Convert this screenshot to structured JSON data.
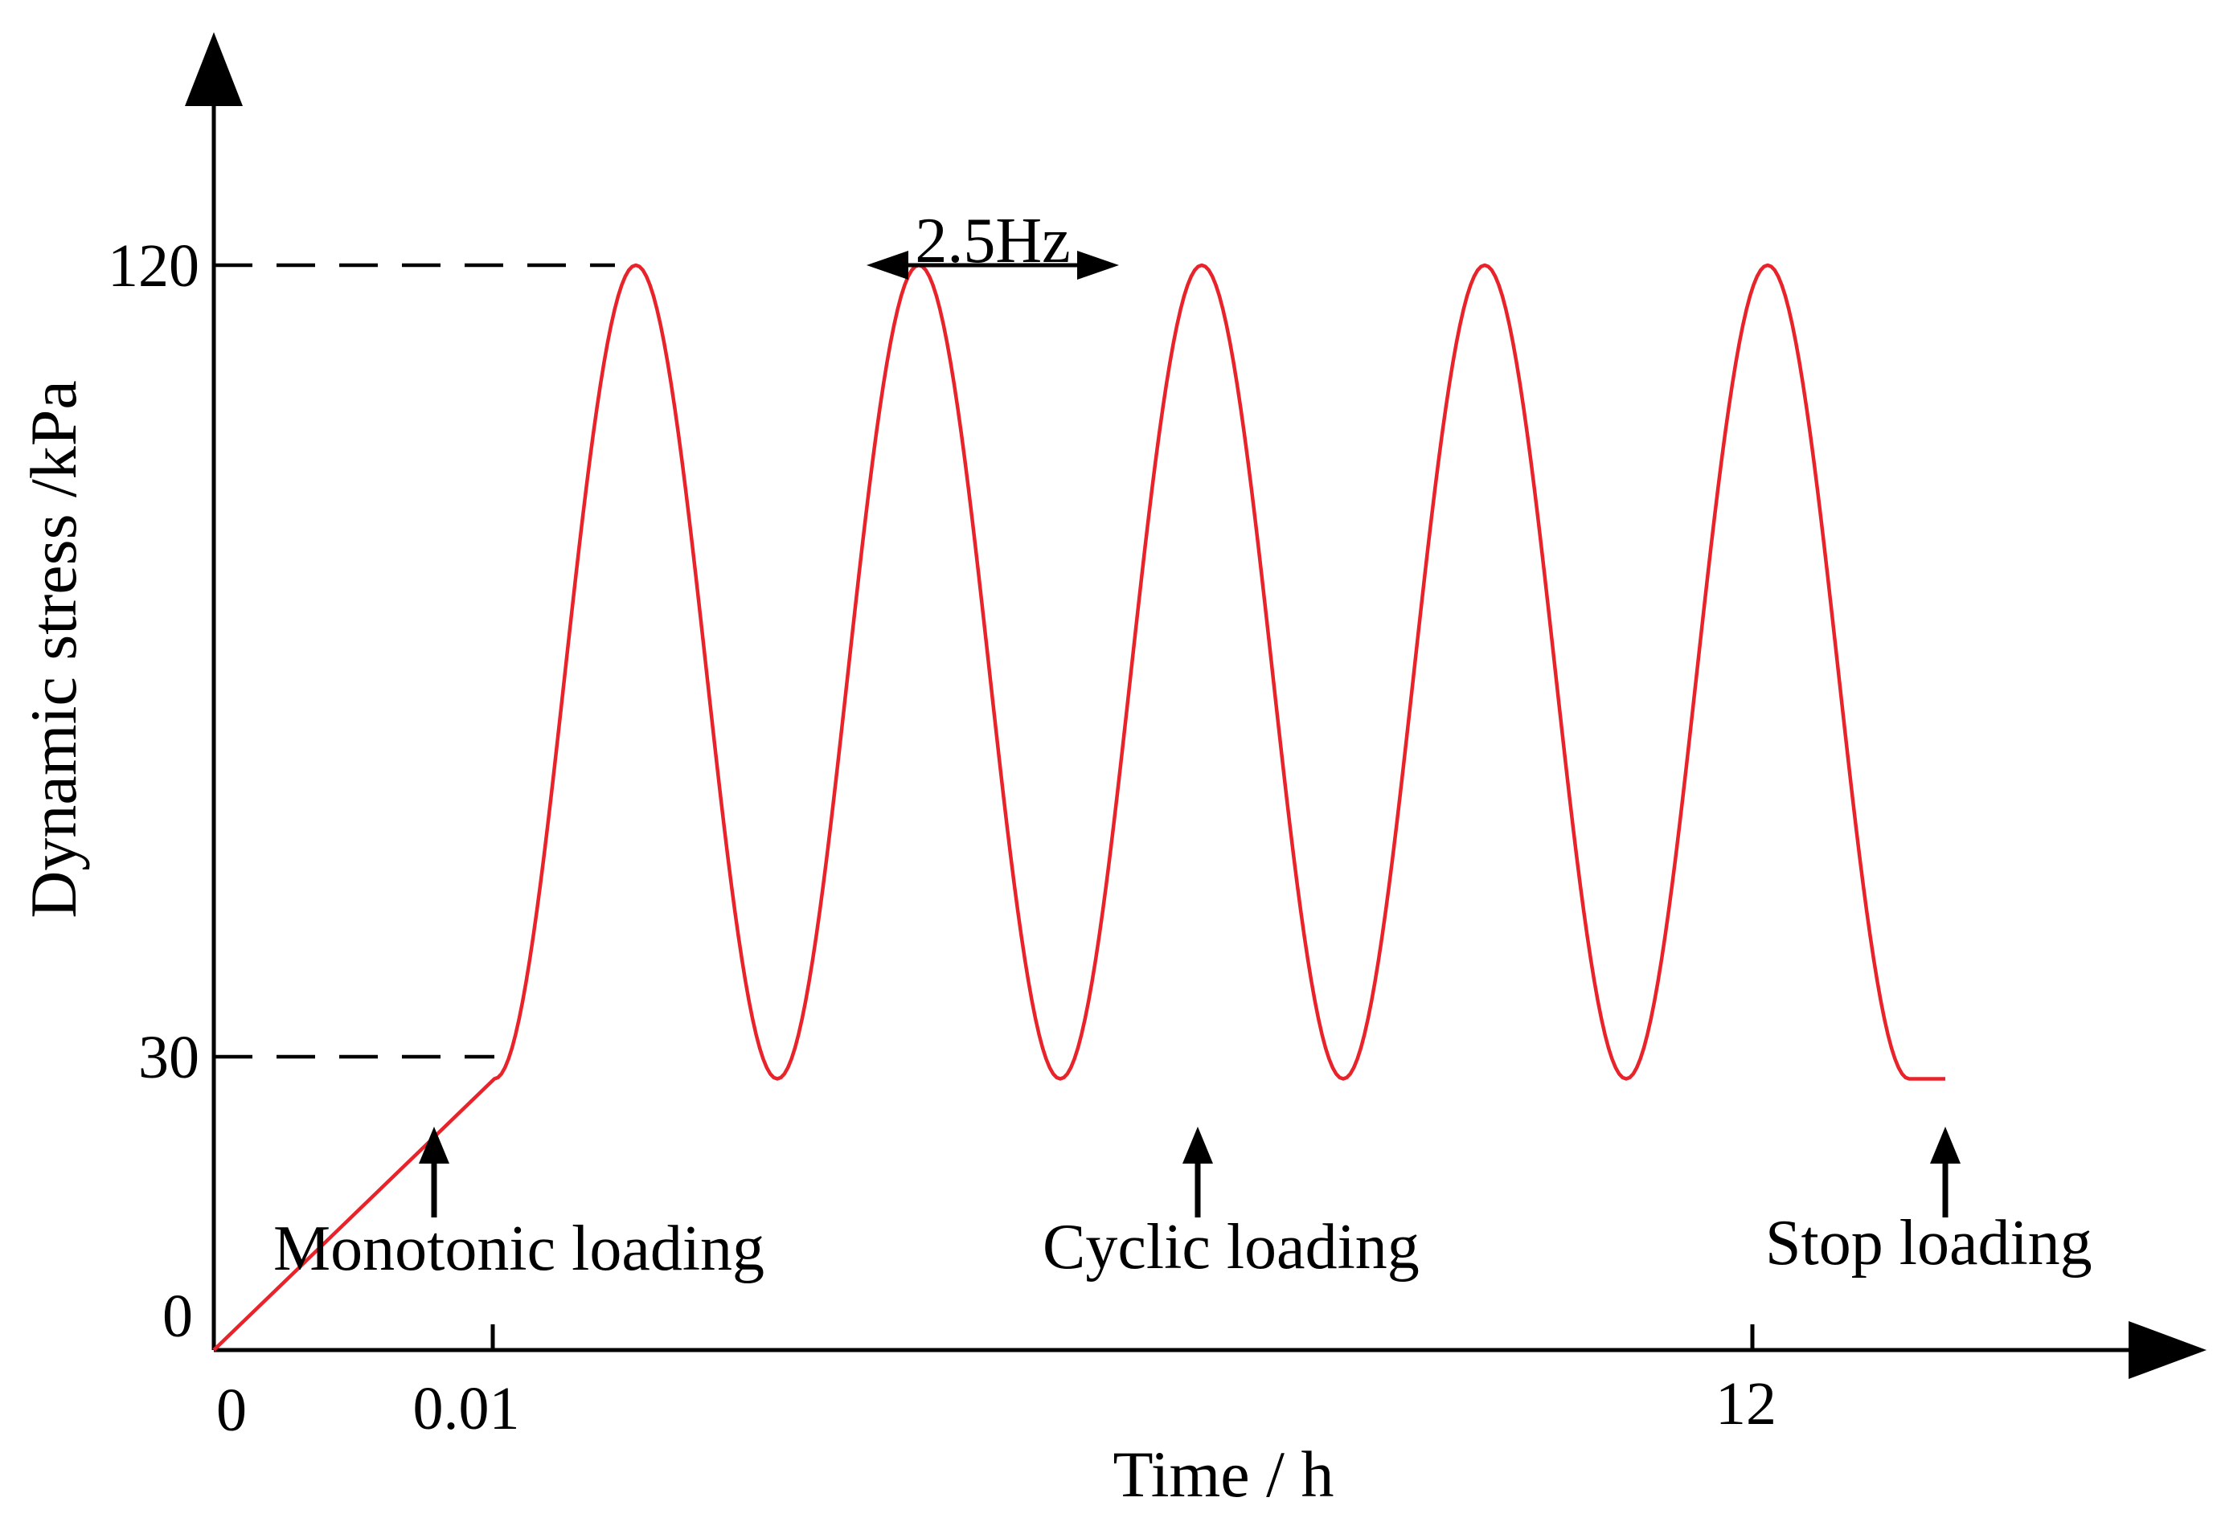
{
  "chart_data": {
    "type": "line",
    "title": "",
    "xlabel": "Time / h",
    "ylabel": "Dynamic stress /kPa",
    "x_tick_labels": [
      "0",
      "0.01",
      "12"
    ],
    "y_tick_labels": [
      "0",
      "30",
      "120"
    ],
    "ylim": [
      0,
      150
    ],
    "grid": false,
    "series": [
      {
        "name": "Dynamic stress",
        "color": "#e8232a",
        "segments": [
          {
            "phase": "Monotonic loading",
            "from_stress": 0,
            "to_stress": 30
          },
          {
            "phase": "Cyclic loading",
            "min_stress": 30,
            "max_stress": 120,
            "frequency": "2.5Hz",
            "cycles_drawn": 5
          },
          {
            "phase": "Stop loading",
            "stress": 30
          }
        ]
      }
    ],
    "reference_levels": [
      120,
      30
    ],
    "annotations": {
      "frequency": "2.5Hz",
      "monotonic": "Monotonic loading",
      "cyclic": "Cyclic loading",
      "stop": "Stop loading"
    }
  },
  "colors": {
    "curve": "#e8232a",
    "axis": "#000000",
    "dash": "#000000"
  }
}
